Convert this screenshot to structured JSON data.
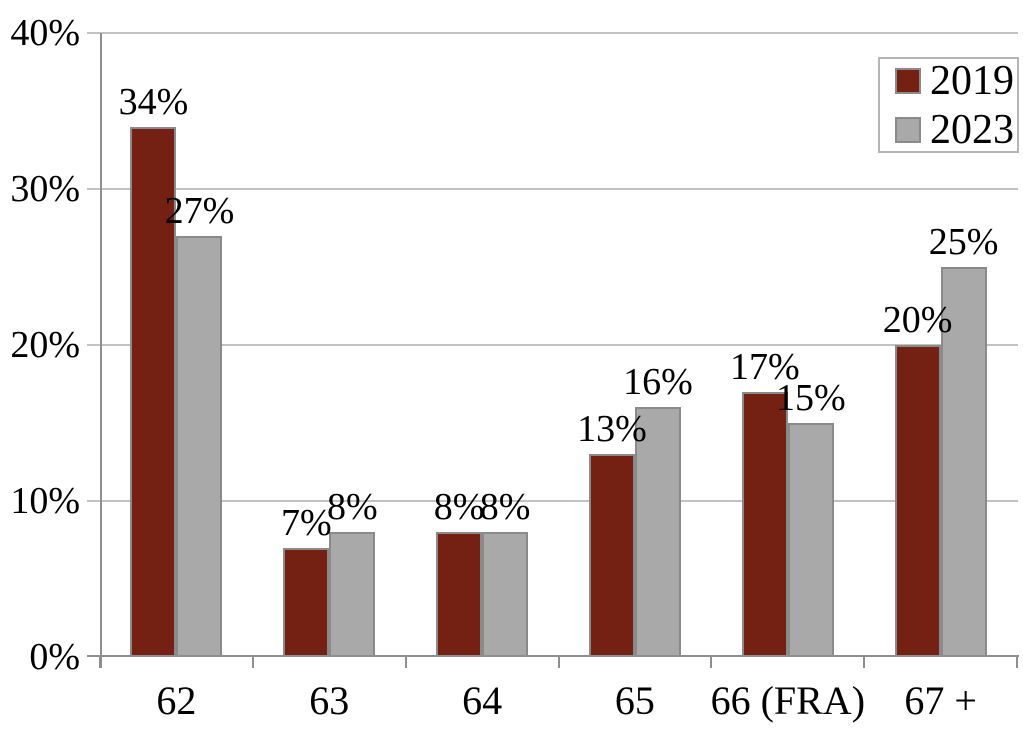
{
  "chart_data": {
    "type": "bar",
    "title": "",
    "xlabel": "",
    "ylabel": "",
    "categories": [
      "62",
      "63",
      "64",
      "65",
      "66 (FRA)",
      "67 +"
    ],
    "series": [
      {
        "name": "2019",
        "color": "#742114",
        "values": [
          34,
          7,
          8,
          13,
          17,
          20
        ],
        "labels": [
          "34%",
          "7%",
          "8%",
          "13%",
          "17%",
          "20%"
        ]
      },
      {
        "name": "2023",
        "color": "#A9A9A9",
        "values": [
          27,
          8,
          8,
          16,
          15,
          25
        ],
        "labels": [
          "27%",
          "8%",
          "8%",
          "16%",
          "15%",
          "25%"
        ]
      }
    ],
    "ylim": [
      0,
      40
    ],
    "yticks": [
      {
        "value": 0,
        "label": "0%"
      },
      {
        "value": 10,
        "label": "10%"
      },
      {
        "value": 20,
        "label": "20%"
      },
      {
        "value": 30,
        "label": "30%"
      },
      {
        "value": 40,
        "label": "40%"
      }
    ],
    "grid": "horizontal",
    "legend_position": "top-right",
    "colors": {
      "bar_border": "#8a8a8a",
      "grid": "#c2c2c2",
      "axis": "#8f8f8f",
      "text": "#000000",
      "background": "#ffffff",
      "legend_border": "#b5b5b5",
      "legend_swatch_border": "#8a8a8a"
    }
  }
}
